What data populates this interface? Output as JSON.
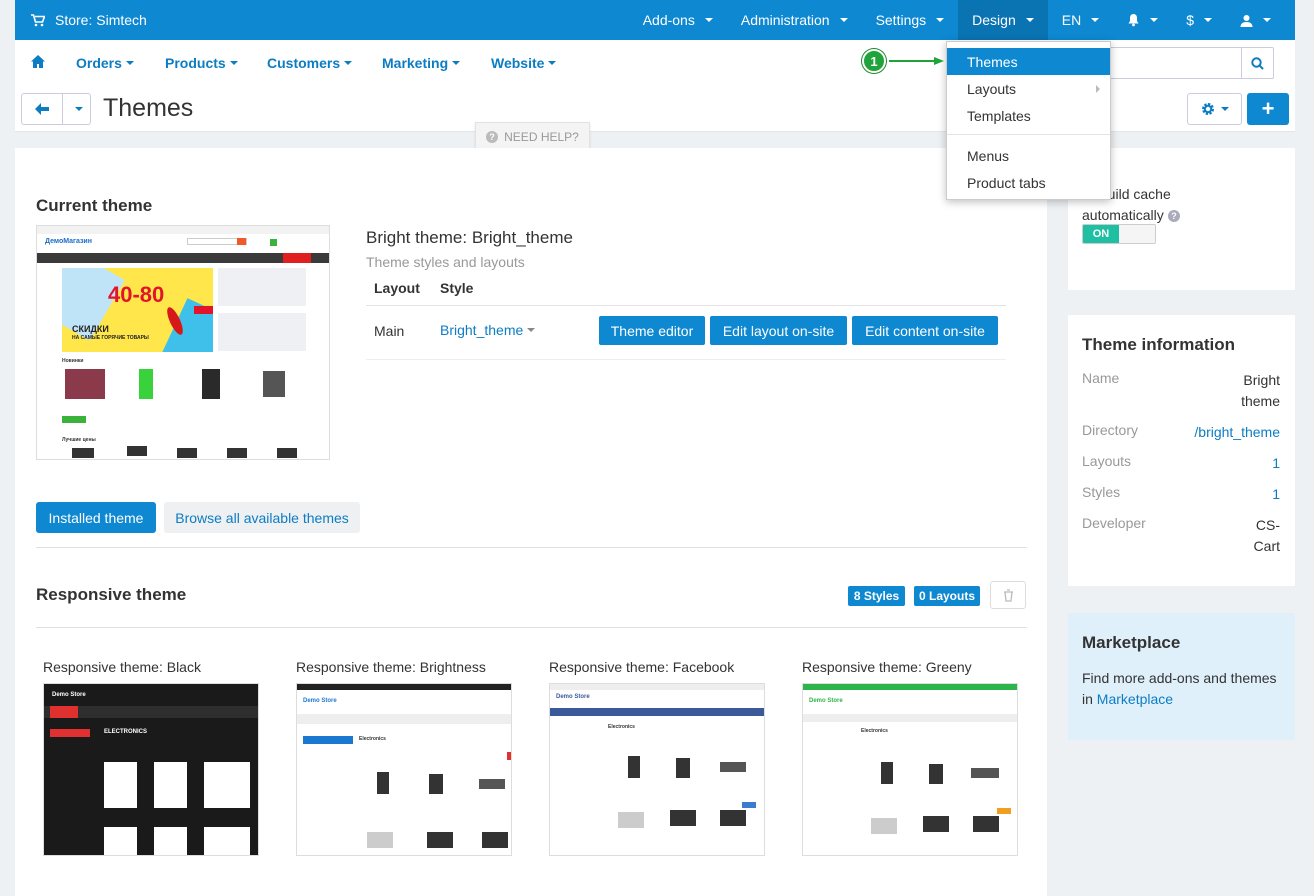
{
  "topbar": {
    "store_label": "Store: Simtech",
    "menu": [
      {
        "label": "Add-ons"
      },
      {
        "label": "Administration"
      },
      {
        "label": "Settings"
      },
      {
        "label": "Design"
      },
      {
        "label": "EN"
      }
    ],
    "currency": "$"
  },
  "subnav": {
    "items": [
      {
        "label": "Orders"
      },
      {
        "label": "Products"
      },
      {
        "label": "Customers"
      },
      {
        "label": "Marketing"
      },
      {
        "label": "Website"
      }
    ]
  },
  "design_menu": {
    "items": [
      {
        "label": "Themes"
      },
      {
        "label": "Layouts"
      },
      {
        "label": "Templates"
      },
      {
        "label": "Menus"
      },
      {
        "label": "Product tabs"
      }
    ]
  },
  "callout": {
    "number": "1"
  },
  "page": {
    "title": "Themes",
    "help": "NEED HELP?"
  },
  "current": {
    "heading": "Current theme",
    "theme_name": "Bright theme: Bright_theme",
    "subtitle": "Theme styles and layouts",
    "col_layout": "Layout",
    "col_style": "Style",
    "layout_value": "Main",
    "style_value": "Bright_theme",
    "btn_theme_editor": "Theme editor",
    "btn_edit_layout": "Edit layout on-site",
    "btn_edit_content": "Edit content on-site",
    "preview": {
      "logo": "ДемоМагазин",
      "promo_big": "40-80",
      "promo_text": "СКИДКИ",
      "promo_sub": "НА САМЫЕ ГОРЯЧИЕ ТОВАРЫ",
      "new_label": "Новинки",
      "best_label": "Лучшие цены"
    }
  },
  "tabs": {
    "installed": "Installed theme",
    "browse": "Browse all available themes"
  },
  "responsive": {
    "heading": "Responsive theme",
    "styles_badge": "8 Styles",
    "layouts_badge": "0 Layouts",
    "cards": [
      {
        "title": "Responsive theme: Black",
        "heading": "ELECTRONICS"
      },
      {
        "title": "Responsive theme: Brightness",
        "heading": "Electronics"
      },
      {
        "title": "Responsive theme: Facebook",
        "heading": "Electronics"
      },
      {
        "title": "Responsive theme: Greeny",
        "heading": "Electronics"
      }
    ],
    "preview_logo": "Demo Store"
  },
  "cache_panel": {
    "text_line1": "Rebuild cache",
    "text_line2": "automatically",
    "toggle": "ON"
  },
  "info_panel": {
    "title": "Theme information",
    "rows": [
      {
        "key": "Name",
        "value": "Bright theme"
      },
      {
        "key": "Directory",
        "value": "/bright_theme"
      },
      {
        "key": "Layouts",
        "value": "1"
      },
      {
        "key": "Styles",
        "value": "1"
      },
      {
        "key": "Developer",
        "value": "CS-Cart"
      }
    ]
  },
  "marketplace": {
    "title": "Marketplace",
    "text": "Find more add-ons and themes in",
    "link": "Marketplace"
  },
  "colors": {
    "primary": "#0d88d1",
    "callout": "#20a33a",
    "toggle_on": "#1ebfa3"
  }
}
